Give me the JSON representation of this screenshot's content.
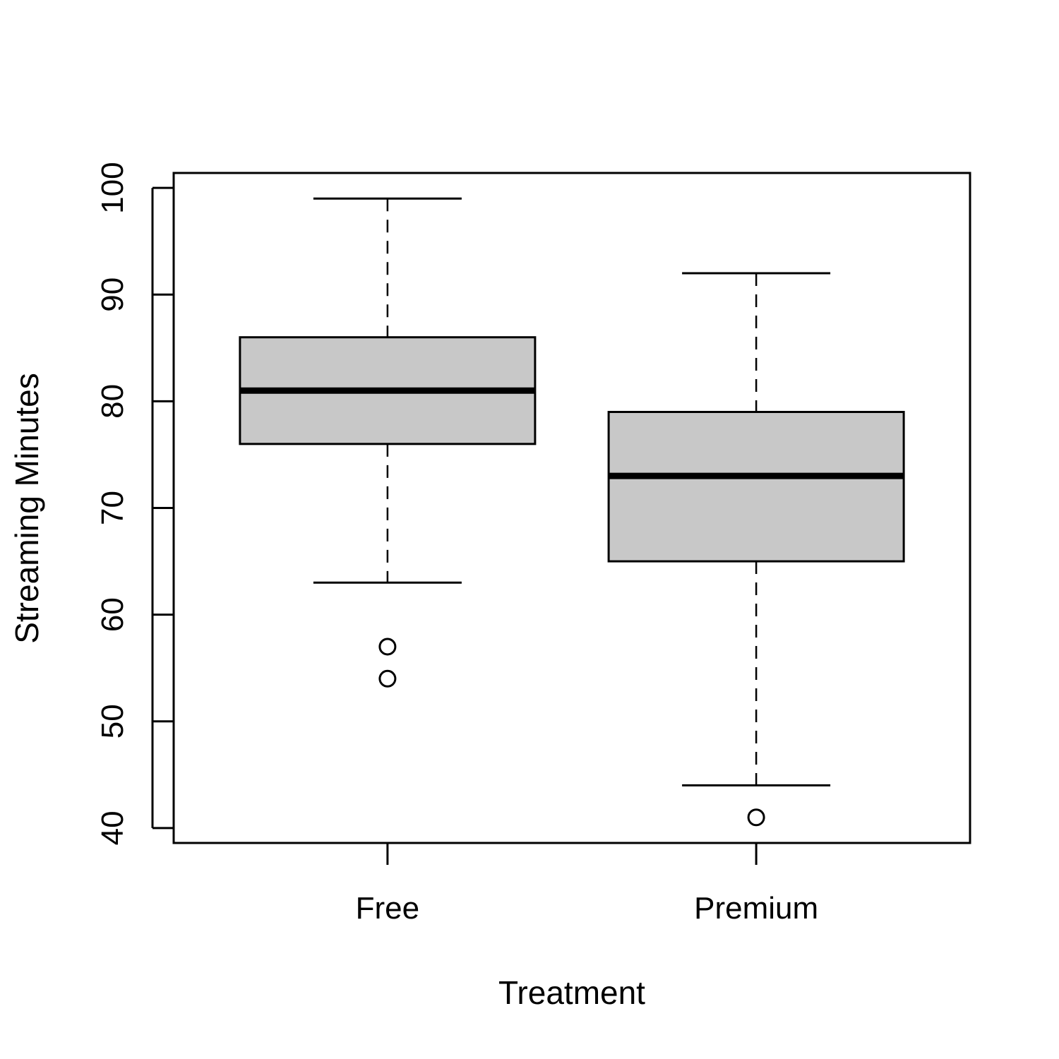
{
  "chart_data": {
    "type": "boxplot",
    "title": "",
    "xlabel": "Treatment",
    "ylabel": "Streaming Minutes",
    "ylim": [
      38.6,
      101.4
    ],
    "yticks": [
      40,
      50,
      60,
      70,
      80,
      90,
      100
    ],
    "grid": false,
    "categories": [
      "Free",
      "Premium"
    ],
    "boxes": [
      {
        "category": "Free",
        "whisker_low": 63,
        "q1": 76,
        "median": 81,
        "q3": 86,
        "whisker_high": 99,
        "outliers": [
          57,
          54
        ]
      },
      {
        "category": "Premium",
        "whisker_low": 44,
        "q1": 65,
        "median": 73,
        "q3": 79,
        "whisker_high": 92,
        "outliers": [
          41
        ]
      }
    ],
    "colors": {
      "box_fill": "#c8c8c8",
      "stroke": "#000000"
    }
  }
}
